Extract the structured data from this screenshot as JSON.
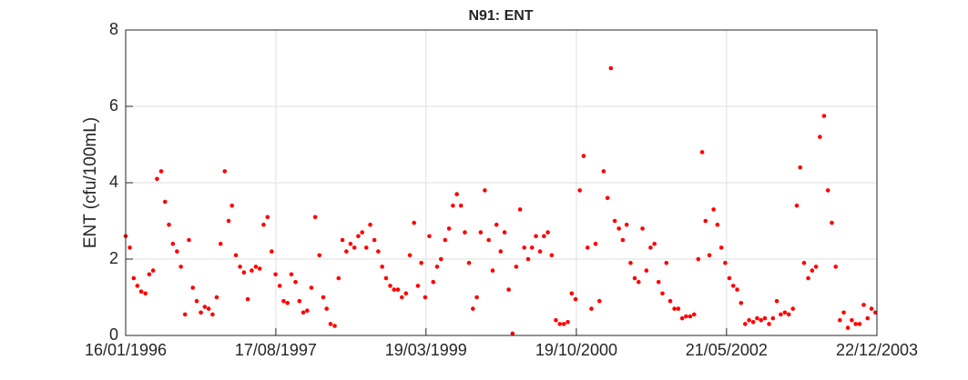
{
  "chart_data": {
    "type": "scatter",
    "title": "N91: ENT",
    "y_label": "ENT (cfu/100mL)",
    "color": "#ff0000",
    "grid": true,
    "xlim": [
      "1996-01-16",
      "2003-12-22"
    ],
    "xticks": [
      {
        "value": "1996-01-16",
        "label": "16/01/1996"
      },
      {
        "value": "1997-08-17",
        "label": "17/08/1997"
      },
      {
        "value": "1999-03-19",
        "label": "19/03/1999"
      },
      {
        "value": "2000-10-19",
        "label": "19/10/2000"
      },
      {
        "value": "2002-05-21",
        "label": "21/05/2002"
      },
      {
        "value": "2003-12-22",
        "label": "22/12/2003"
      }
    ],
    "ylim": [
      0,
      8
    ],
    "yticks": [
      0,
      2,
      4,
      6,
      8
    ],
    "x": [
      "1996-01-16",
      "1996-02-01",
      "1996-02-16",
      "1996-03-01",
      "1996-03-16",
      "1996-04-01",
      "1996-04-16",
      "1996-05-01",
      "1996-05-16",
      "1996-06-01",
      "1996-06-16",
      "1996-07-01",
      "1996-07-16",
      "1996-08-01",
      "1996-08-16",
      "1996-09-01",
      "1996-09-16",
      "1996-10-01",
      "1996-10-16",
      "1996-11-01",
      "1996-11-16",
      "1996-12-01",
      "1996-12-16",
      "1997-01-01",
      "1997-01-16",
      "1997-02-01",
      "1997-02-16",
      "1997-03-01",
      "1997-03-16",
      "1997-04-01",
      "1997-04-16",
      "1997-05-01",
      "1997-05-16",
      "1997-06-01",
      "1997-06-16",
      "1997-07-01",
      "1997-07-16",
      "1997-08-01",
      "1997-08-16",
      "1997-09-01",
      "1997-09-16",
      "1997-10-01",
      "1997-10-16",
      "1997-11-01",
      "1997-11-16",
      "1997-12-01",
      "1997-12-16",
      "1998-01-01",
      "1998-01-16",
      "1998-02-01",
      "1998-02-16",
      "1998-03-01",
      "1998-03-16",
      "1998-04-01",
      "1998-04-16",
      "1998-05-01",
      "1998-05-16",
      "1998-06-01",
      "1998-06-16",
      "1998-07-01",
      "1998-07-16",
      "1998-08-01",
      "1998-08-16",
      "1998-09-01",
      "1998-09-16",
      "1998-10-01",
      "1998-10-16",
      "1998-11-01",
      "1998-11-16",
      "1998-12-01",
      "1998-12-16",
      "1999-01-01",
      "1999-01-16",
      "1999-02-01",
      "1999-02-16",
      "1999-03-01",
      "1999-03-16",
      "1999-04-01",
      "1999-04-16",
      "1999-05-01",
      "1999-05-16",
      "1999-06-01",
      "1999-06-16",
      "1999-07-01",
      "1999-07-16",
      "1999-08-01",
      "1999-08-16",
      "1999-09-01",
      "1999-09-16",
      "1999-10-01",
      "1999-10-16",
      "1999-11-01",
      "1999-11-16",
      "1999-12-01",
      "1999-12-16",
      "2000-01-01",
      "2000-01-16",
      "2000-02-01",
      "2000-02-16",
      "2000-03-01",
      "2000-03-16",
      "2000-04-01",
      "2000-04-16",
      "2000-05-01",
      "2000-05-16",
      "2000-06-01",
      "2000-06-16",
      "2000-07-01",
      "2000-07-16",
      "2000-08-01",
      "2000-08-16",
      "2000-09-01",
      "2000-09-16",
      "2000-10-01",
      "2000-10-16",
      "2000-11-01",
      "2000-11-16",
      "2000-12-01",
      "2000-12-16",
      "2001-01-01",
      "2001-01-16",
      "2001-02-01",
      "2001-02-16",
      "2001-03-01",
      "2001-03-16",
      "2001-04-01",
      "2001-04-16",
      "2001-05-01",
      "2001-05-16",
      "2001-06-01",
      "2001-06-16",
      "2001-07-01",
      "2001-07-16",
      "2001-08-01",
      "2001-08-16",
      "2001-09-01",
      "2001-09-16",
      "2001-10-01",
      "2001-10-16",
      "2001-11-01",
      "2001-11-16",
      "2001-12-01",
      "2001-12-16",
      "2002-01-01",
      "2002-01-16",
      "2002-02-01",
      "2002-02-16",
      "2002-03-01",
      "2002-03-16",
      "2002-04-01",
      "2002-04-16",
      "2002-05-01",
      "2002-05-16",
      "2002-06-01",
      "2002-06-16",
      "2002-07-01",
      "2002-07-16",
      "2002-08-01",
      "2002-08-16",
      "2002-09-01",
      "2002-09-16",
      "2002-10-01",
      "2002-10-16",
      "2002-11-01",
      "2002-11-16",
      "2002-12-01",
      "2002-12-16",
      "2003-01-01",
      "2003-01-16",
      "2003-02-01",
      "2003-02-16",
      "2003-03-01",
      "2003-03-16",
      "2003-04-01",
      "2003-04-16",
      "2003-05-01",
      "2003-05-16",
      "2003-06-01",
      "2003-06-16",
      "2003-07-01",
      "2003-07-16",
      "2003-08-01",
      "2003-08-16",
      "2003-09-01",
      "2003-09-16",
      "2003-10-01",
      "2003-10-16",
      "2003-11-01",
      "2003-11-16",
      "2003-12-01",
      "2003-12-16"
    ],
    "values": [
      2.6,
      2.3,
      1.5,
      1.3,
      1.15,
      1.1,
      1.6,
      1.7,
      4.1,
      4.3,
      3.5,
      2.9,
      2.4,
      2.2,
      1.8,
      0.55,
      2.5,
      1.25,
      0.9,
      0.6,
      0.75,
      0.7,
      0.55,
      1.0,
      2.4,
      4.3,
      3.0,
      3.4,
      2.1,
      1.8,
      1.65,
      0.95,
      1.7,
      1.8,
      1.75,
      2.9,
      3.1,
      2.2,
      1.6,
      1.3,
      0.9,
      0.85,
      1.6,
      1.4,
      0.9,
      0.6,
      0.65,
      1.25,
      3.1,
      2.1,
      1.0,
      0.7,
      0.3,
      0.25,
      1.5,
      2.5,
      2.2,
      2.4,
      2.3,
      2.6,
      2.7,
      2.3,
      2.9,
      2.5,
      2.2,
      1.8,
      1.5,
      1.3,
      1.2,
      1.2,
      1.0,
      1.1,
      2.1,
      2.95,
      1.3,
      1.9,
      1.0,
      2.6,
      1.4,
      1.8,
      2.0,
      2.5,
      2.8,
      3.4,
      3.7,
      3.4,
      2.7,
      1.9,
      0.7,
      1.0,
      2.7,
      3.8,
      2.5,
      1.7,
      2.9,
      2.2,
      2.7,
      1.2,
      0.05,
      1.8,
      3.3,
      2.3,
      2.0,
      2.3,
      2.6,
      2.2,
      2.6,
      2.7,
      2.1,
      0.4,
      0.3,
      0.3,
      0.35,
      1.1,
      0.95,
      3.8,
      4.7,
      2.3,
      0.7,
      2.4,
      0.9,
      4.3,
      3.6,
      7.0,
      3.0,
      2.8,
      2.5,
      2.9,
      1.9,
      1.5,
      1.4,
      2.8,
      1.7,
      2.3,
      2.4,
      1.4,
      1.1,
      1.9,
      0.9,
      0.7,
      0.7,
      0.45,
      0.5,
      0.5,
      0.55,
      2.0,
      4.8,
      3.0,
      2.1,
      3.3,
      2.9,
      2.3,
      1.9,
      1.5,
      1.3,
      1.2,
      0.85,
      0.3,
      0.4,
      0.35,
      0.45,
      0.4,
      0.45,
      0.3,
      0.45,
      0.9,
      0.55,
      0.6,
      0.55,
      0.7,
      3.4,
      4.4,
      1.9,
      1.5,
      1.7,
      1.8,
      5.2,
      5.75,
      3.8,
      2.95,
      1.8,
      0.4,
      0.6,
      0.2,
      0.4,
      0.3,
      0.3,
      0.8,
      0.45,
      0.7,
      0.6
    ]
  }
}
